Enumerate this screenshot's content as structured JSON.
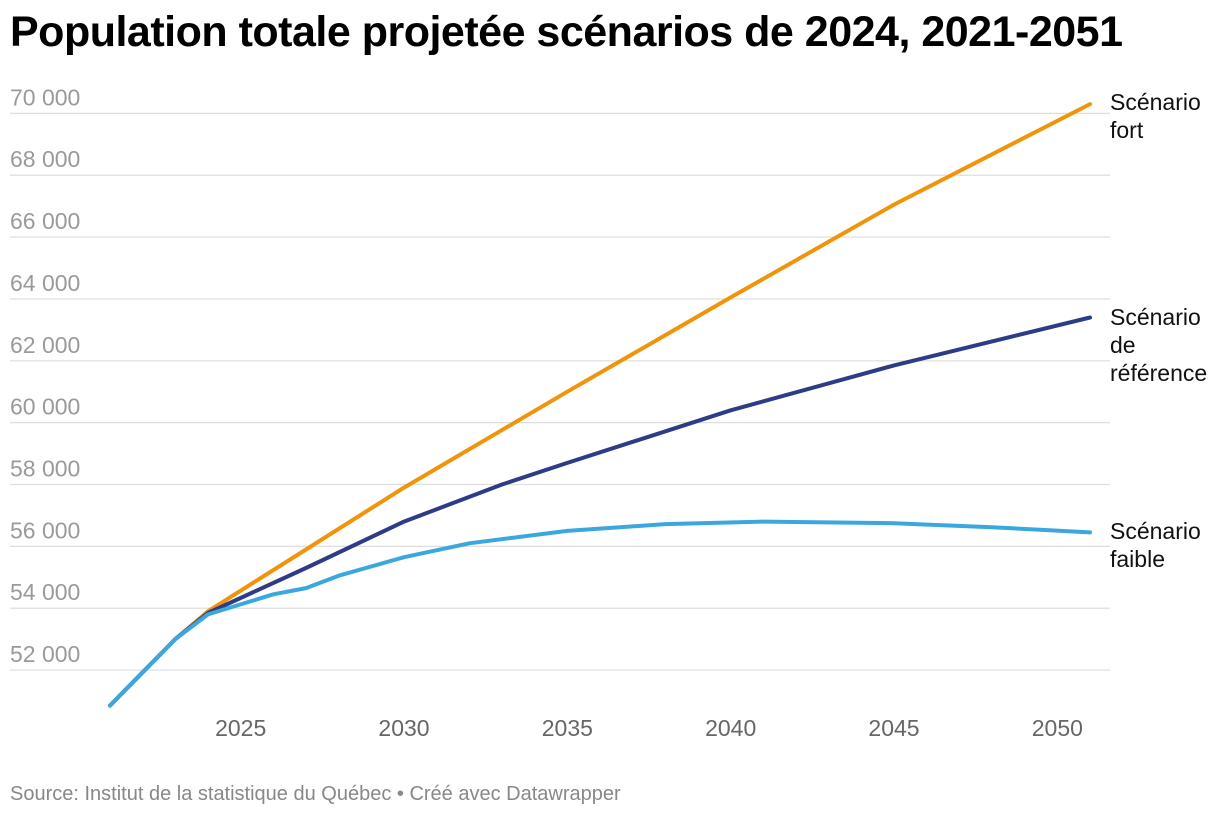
{
  "title": "Population totale projetée scénarios de 2024, 2021-2051",
  "source": "Source: Institut de la statistique du Québec • Créé avec Datawrapper",
  "chart_data": {
    "type": "line",
    "title": "Population totale projetée scénarios de 2024, 2021-2051",
    "xlim": [
      2021,
      2051
    ],
    "ylim": [
      51000,
      70400
    ],
    "x_ticks": [
      2025,
      2030,
      2035,
      2040,
      2045,
      2050
    ],
    "y_ticks": [
      52000,
      54000,
      56000,
      58000,
      60000,
      62000,
      64000,
      66000,
      68000,
      70000
    ],
    "y_tick_labels": [
      "52 000",
      "54 000",
      "56 000",
      "58 000",
      "60 000",
      "62 000",
      "64 000",
      "66 000",
      "68 000",
      "70 000"
    ],
    "grid": true,
    "legend": "direct labels at line ends (right)",
    "series": [
      {
        "name": "Scénario fort",
        "label_lines": [
          "Scénario",
          "fort"
        ],
        "color": "#f0940b",
        "points": [
          [
            2021,
            50850
          ],
          [
            2023,
            53000
          ],
          [
            2024,
            53900
          ],
          [
            2027,
            55900
          ],
          [
            2030,
            57900
          ],
          [
            2035,
            61000
          ],
          [
            2040,
            64050
          ],
          [
            2045,
            67050
          ],
          [
            2051,
            70300
          ]
        ]
      },
      {
        "name": "Scénario de référence",
        "label_lines": [
          "Scénario",
          "de",
          "référence"
        ],
        "color": "#2e3b86",
        "points": [
          [
            2021,
            50850
          ],
          [
            2023,
            53000
          ],
          [
            2024,
            53850
          ],
          [
            2027,
            55300
          ],
          [
            2030,
            56800
          ],
          [
            2033,
            58000
          ],
          [
            2035,
            58700
          ],
          [
            2040,
            60400
          ],
          [
            2045,
            61850
          ],
          [
            2051,
            63400
          ]
        ]
      },
      {
        "name": "Scénario faible",
        "label_lines": [
          "Scénario",
          "faible"
        ],
        "color": "#3aa8df",
        "points": [
          [
            2021,
            50850
          ],
          [
            2023,
            53000
          ],
          [
            2024,
            53800
          ],
          [
            2026,
            54450
          ],
          [
            2027,
            54650
          ],
          [
            2028,
            55050
          ],
          [
            2030,
            55650
          ],
          [
            2032,
            56100
          ],
          [
            2035,
            56500
          ],
          [
            2038,
            56720
          ],
          [
            2041,
            56800
          ],
          [
            2045,
            56750
          ],
          [
            2048,
            56620
          ],
          [
            2051,
            56450
          ]
        ]
      }
    ]
  }
}
